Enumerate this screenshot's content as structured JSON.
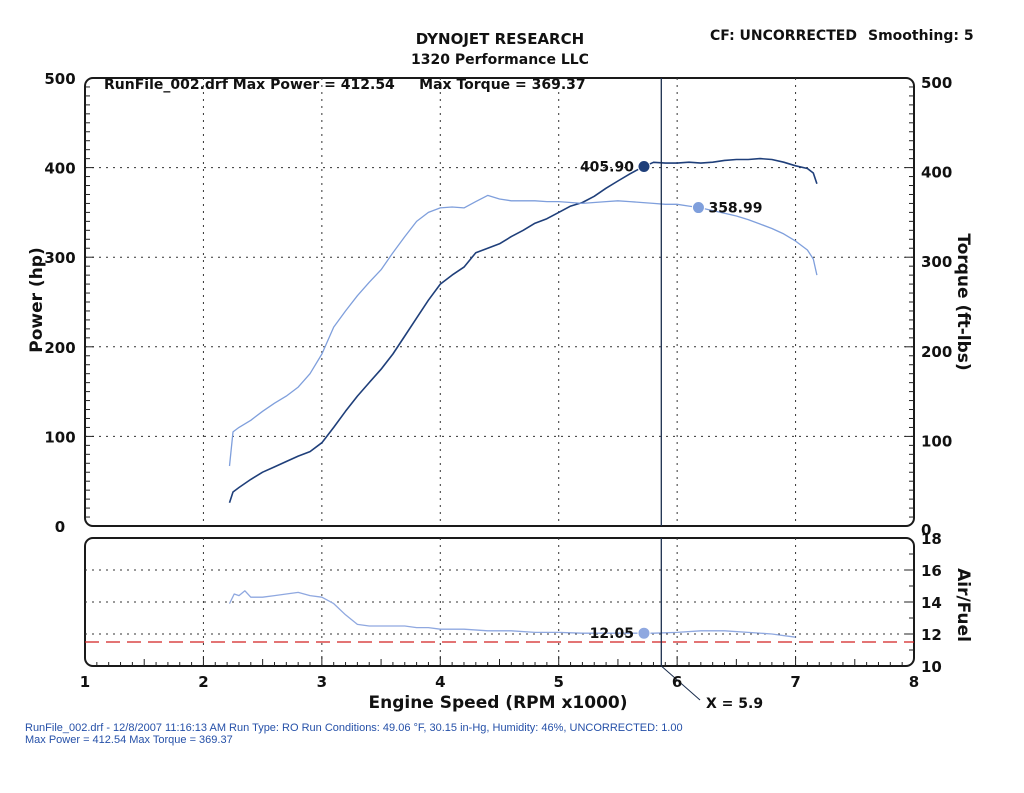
{
  "header": {
    "company": "DYNOJET RESEARCH",
    "shop": "1320 Performance LLC",
    "cf_label": "CF: UNCORRECTED",
    "smoothing_label": "Smoothing: 5"
  },
  "run_summary": "RunFile_002.drf Max Power = 412.54     Max Torque = 369.37",
  "footer": {
    "line1": "RunFile_002.drf - 12/8/2007 11:16:13 AM  Run Type: RO  Run Conditions: 49.06 °F, 30.15 in-Hg,  Humidity:  46%, UNCORRECTED: 1.00",
    "line2": "Max Power = 412.54  Max Torque = 369.37"
  },
  "cursor": {
    "x": 5.9,
    "label": "X = 5.9"
  },
  "colors": {
    "power": "#1f3f7a",
    "torque": "#7f9fdc",
    "afr": "#8fa8e0",
    "afr_reference": "#d22020",
    "cursor": "#1a2d4d",
    "frame": "#1a1a1a"
  },
  "chart_data": [
    {
      "type": "line",
      "name": "power-torque",
      "xlabel": "",
      "ylabel_left": "Power (hp)",
      "ylabel_right": "Torque (ft-lbs)",
      "xlim": [
        1,
        8
      ],
      "ylim": [
        0,
        500
      ],
      "xticks": [
        "1",
        "2",
        "3",
        "4",
        "5",
        "6",
        "7",
        "8"
      ],
      "yticks_left": [
        "0",
        "100",
        "200",
        "300",
        "400",
        "500"
      ],
      "yticks_right": [
        "0",
        "100",
        "200",
        "300",
        "400",
        "500"
      ],
      "grid": true,
      "series": [
        {
          "name": "Power",
          "x": [
            2.22,
            2.25,
            2.3,
            2.4,
            2.5,
            2.6,
            2.7,
            2.8,
            2.9,
            3.0,
            3.1,
            3.2,
            3.3,
            3.4,
            3.5,
            3.6,
            3.7,
            3.8,
            3.9,
            4.0,
            4.1,
            4.2,
            4.3,
            4.4,
            4.5,
            4.6,
            4.7,
            4.8,
            4.9,
            5.0,
            5.1,
            5.2,
            5.3,
            5.4,
            5.5,
            5.6,
            5.7,
            5.8,
            5.9,
            6.0,
            6.1,
            6.2,
            6.3,
            6.4,
            6.5,
            6.6,
            6.7,
            6.8,
            6.9,
            7.0,
            7.1,
            7.15,
            7.18
          ],
          "y": [
            26,
            38,
            43,
            52,
            60,
            66,
            72,
            78,
            83,
            93,
            110,
            128,
            145,
            160,
            175,
            192,
            212,
            232,
            252,
            270,
            280,
            289,
            305,
            310,
            315,
            323,
            330,
            338,
            343,
            350,
            357,
            361,
            368,
            377,
            385,
            393,
            400,
            405.9,
            405,
            405,
            406,
            405,
            406,
            408,
            409,
            409,
            410,
            409,
            406,
            402,
            399,
            394,
            382
          ]
        },
        {
          "name": "Torque",
          "x": [
            2.22,
            2.25,
            2.3,
            2.4,
            2.5,
            2.6,
            2.7,
            2.8,
            2.9,
            3.0,
            3.1,
            3.2,
            3.3,
            3.4,
            3.5,
            3.6,
            3.7,
            3.8,
            3.9,
            4.0,
            4.1,
            4.2,
            4.3,
            4.4,
            4.5,
            4.6,
            4.7,
            4.8,
            4.9,
            5.0,
            5.1,
            5.2,
            5.3,
            5.4,
            5.5,
            5.6,
            5.7,
            5.8,
            5.9,
            6.0,
            6.1,
            6.2,
            6.3,
            6.4,
            6.5,
            6.6,
            6.7,
            6.8,
            6.9,
            7.0,
            7.1,
            7.15,
            7.18
          ],
          "y": [
            67,
            105,
            110,
            118,
            128,
            137,
            145,
            155,
            170,
            192,
            222,
            240,
            257,
            272,
            286,
            305,
            323,
            340,
            350,
            355,
            356,
            355,
            362,
            369,
            365,
            363,
            363,
            363,
            362,
            362,
            361,
            360,
            361,
            362,
            363,
            362,
            361,
            360,
            359,
            358.99,
            357,
            355,
            352,
            349,
            346,
            342,
            337,
            332,
            326,
            318,
            308,
            298,
            280
          ]
        }
      ],
      "annotations": [
        {
          "series": "Power",
          "x": 5.72,
          "value": "405.90"
        },
        {
          "series": "Torque",
          "x": 6.18,
          "value": "358.99"
        }
      ]
    },
    {
      "type": "line",
      "name": "air-fuel",
      "xlabel": "Engine Speed (RPM x1000)",
      "ylabel_right": "Air/Fuel",
      "xlim": [
        1,
        8
      ],
      "ylim": [
        10,
        18
      ],
      "xticks": [
        "1",
        "2",
        "3",
        "4",
        "5",
        "6",
        "7",
        "8"
      ],
      "yticks_right": [
        "10",
        "12",
        "14",
        "16",
        "18"
      ],
      "grid": true,
      "reference_line": 11.5,
      "series": [
        {
          "name": "Air/Fuel",
          "x": [
            2.22,
            2.26,
            2.3,
            2.35,
            2.4,
            2.5,
            2.6,
            2.7,
            2.8,
            2.9,
            3.0,
            3.1,
            3.2,
            3.3,
            3.4,
            3.5,
            3.6,
            3.7,
            3.8,
            3.9,
            4.0,
            4.2,
            4.4,
            4.6,
            4.8,
            5.0,
            5.2,
            5.4,
            5.6,
            5.8,
            6.0,
            6.2,
            6.4,
            6.6,
            6.8,
            7.0
          ],
          "y": [
            13.9,
            14.5,
            14.4,
            14.7,
            14.3,
            14.3,
            14.4,
            14.5,
            14.6,
            14.4,
            14.3,
            13.9,
            13.2,
            12.6,
            12.5,
            12.5,
            12.5,
            12.5,
            12.4,
            12.4,
            12.3,
            12.3,
            12.2,
            12.2,
            12.1,
            12.1,
            12.05,
            12.05,
            12.05,
            12.05,
            12.1,
            12.2,
            12.2,
            12.1,
            12.0,
            11.8
          ]
        }
      ],
      "annotations": [
        {
          "series": "Air/Fuel",
          "x": 5.72,
          "value": "12.05"
        }
      ]
    }
  ]
}
